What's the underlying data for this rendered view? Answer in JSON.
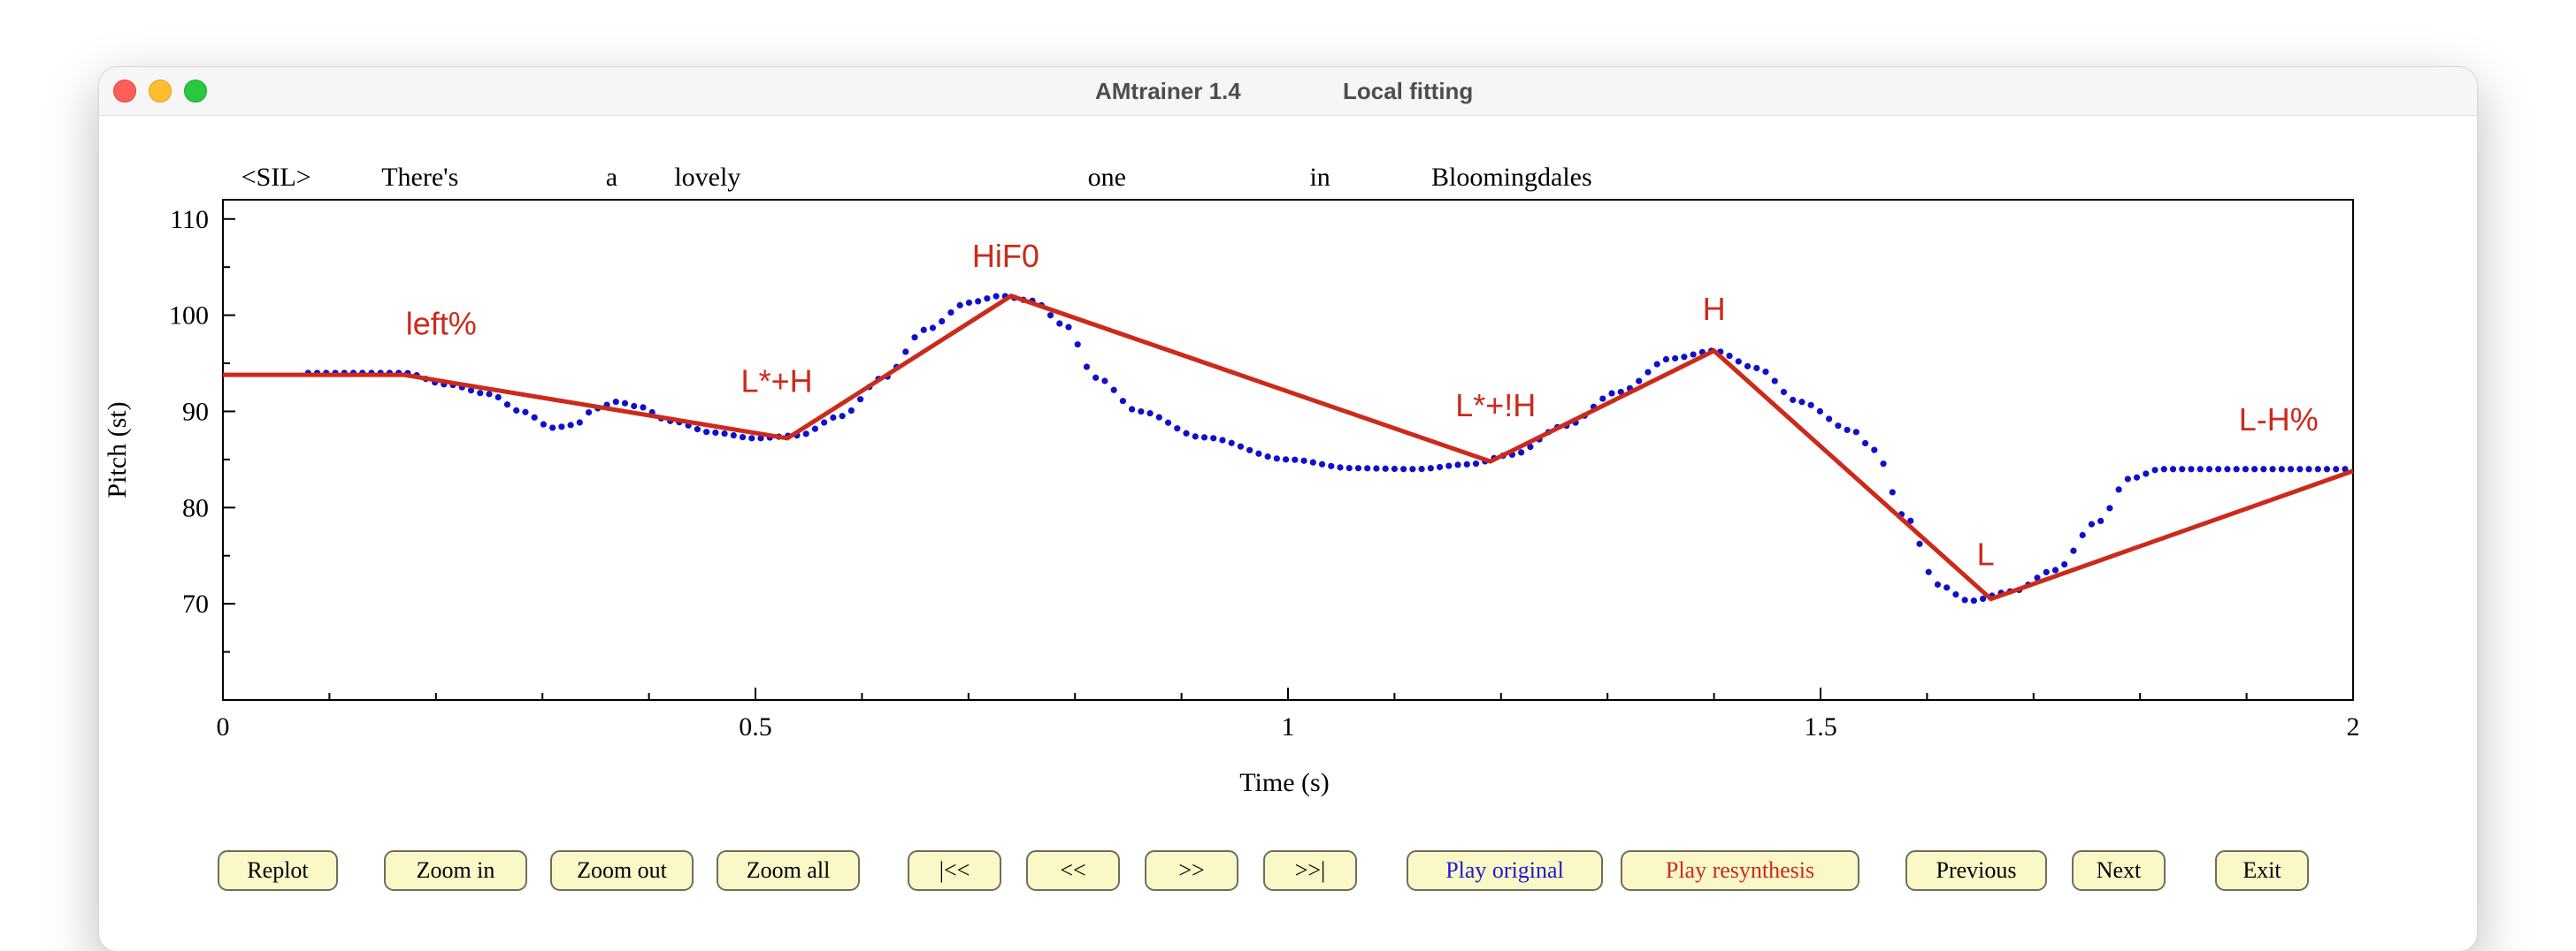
{
  "window": {
    "app_title": "AMtrainer 1.4",
    "mode_title": "Local fitting"
  },
  "words": [
    {
      "text": "<SIL>",
      "t": 0.05
    },
    {
      "text": "There's",
      "t": 0.185
    },
    {
      "text": "a",
      "t": 0.365
    },
    {
      "text": "lovely",
      "t": 0.455
    },
    {
      "text": "one",
      "t": 0.83
    },
    {
      "text": "in",
      "t": 1.03
    },
    {
      "text": "Bloomingdales",
      "t": 1.21
    }
  ],
  "chart_data": {
    "type": "line",
    "xlabel": "Time (s)",
    "ylabel": "Pitch (st)",
    "xlim": [
      0,
      2
    ],
    "ylim": [
      60,
      112
    ],
    "x_ticks": [
      0,
      0.5,
      1,
      1.5,
      2
    ],
    "x_tick_labels": [
      "0",
      "0.5",
      "1",
      "1.5",
      "2"
    ],
    "x_minor_ticks": [
      0.1,
      0.2,
      0.3,
      0.4,
      0.6,
      0.7,
      0.8,
      0.9,
      1.1,
      1.2,
      1.3,
      1.4,
      1.6,
      1.7,
      1.8,
      1.9
    ],
    "y_ticks": [
      70,
      80,
      90,
      100,
      110
    ],
    "y_tick_labels": [
      "70",
      "80",
      "90",
      "100",
      "110"
    ],
    "y_minor_ticks": [
      65,
      75,
      85,
      95,
      105
    ],
    "series": [
      {
        "style": "dotted",
        "color": "#1010cc",
        "points": [
          [
            0.08,
            94
          ],
          [
            0.13,
            94
          ],
          [
            0.17,
            94
          ],
          [
            0.21,
            92.8
          ],
          [
            0.25,
            91.8
          ],
          [
            0.28,
            90
          ],
          [
            0.31,
            88.3
          ],
          [
            0.33,
            88.6
          ],
          [
            0.35,
            90.3
          ],
          [
            0.37,
            91
          ],
          [
            0.39,
            90.5
          ],
          [
            0.42,
            89
          ],
          [
            0.46,
            87.8
          ],
          [
            0.5,
            87.2
          ],
          [
            0.54,
            87.5
          ],
          [
            0.58,
            89.5
          ],
          [
            0.62,
            93.5
          ],
          [
            0.66,
            98.5
          ],
          [
            0.7,
            101.3
          ],
          [
            0.73,
            102
          ],
          [
            0.76,
            101.5
          ],
          [
            0.79,
            99
          ],
          [
            0.82,
            93.5
          ],
          [
            0.86,
            90
          ],
          [
            0.92,
            87.3
          ],
          [
            1.0,
            85
          ],
          [
            1.06,
            84.1
          ],
          [
            1.12,
            84
          ],
          [
            1.17,
            84.5
          ],
          [
            1.21,
            85.5
          ],
          [
            1.26,
            88.5
          ],
          [
            1.31,
            92
          ],
          [
            1.36,
            95.5
          ],
          [
            1.4,
            96.3
          ],
          [
            1.44,
            94.5
          ],
          [
            1.48,
            91
          ],
          [
            1.53,
            88
          ],
          [
            1.55,
            86
          ],
          [
            1.58,
            79
          ],
          [
            1.61,
            72
          ],
          [
            1.64,
            70.3
          ],
          [
            1.68,
            71.3
          ],
          [
            1.72,
            73.5
          ],
          [
            1.76,
            78.5
          ],
          [
            1.79,
            83
          ],
          [
            1.82,
            84
          ],
          [
            1.9,
            84
          ],
          [
            1.96,
            84
          ],
          [
            2.0,
            84
          ]
        ]
      },
      {
        "style": "solid",
        "color": "#cc2a1a",
        "points": [
          [
            0,
            93.8
          ],
          [
            0.17,
            93.8
          ],
          [
            0.53,
            87.2
          ],
          [
            0.74,
            102
          ],
          [
            1.19,
            84.8
          ],
          [
            1.4,
            96.3
          ],
          [
            1.66,
            70.5
          ],
          [
            2.0,
            83.8
          ]
        ]
      }
    ],
    "annotations": [
      {
        "text": "left%",
        "x": 0.205,
        "y": 98
      },
      {
        "text": "L*+H",
        "x": 0.52,
        "y": 92
      },
      {
        "text": "HiF0",
        "x": 0.735,
        "y": 105
      },
      {
        "text": "L*+!H",
        "x": 1.195,
        "y": 89.5
      },
      {
        "text": "H",
        "x": 1.4,
        "y": 99.5
      },
      {
        "text": "L",
        "x": 1.655,
        "y": 74
      },
      {
        "text": "L-H%",
        "x": 1.93,
        "y": 88
      }
    ],
    "annotation_color": "#cc2a1a"
  },
  "buttons": [
    {
      "name": "replot-button",
      "label": "Replot",
      "color": ""
    },
    {
      "name": "zoom-in-button",
      "label": "Zoom in",
      "color": ""
    },
    {
      "name": "zoom-out-button",
      "label": "Zoom out",
      "color": ""
    },
    {
      "name": "zoom-all-button",
      "label": "Zoom all",
      "color": ""
    },
    {
      "name": "go-start-button",
      "label": "|<<",
      "color": ""
    },
    {
      "name": "step-back-button",
      "label": "<<",
      "color": ""
    },
    {
      "name": "step-forward-button",
      "label": ">>",
      "color": ""
    },
    {
      "name": "go-end-button",
      "label": ">>|",
      "color": ""
    },
    {
      "name": "play-original-button",
      "label": "Play original",
      "color": "blue"
    },
    {
      "name": "play-resynthesis-button",
      "label": "Play resynthesis",
      "color": "red"
    },
    {
      "name": "previous-button",
      "label": "Previous",
      "color": ""
    },
    {
      "name": "next-button",
      "label": "Next",
      "color": ""
    },
    {
      "name": "exit-button",
      "label": "Exit",
      "color": ""
    }
  ]
}
